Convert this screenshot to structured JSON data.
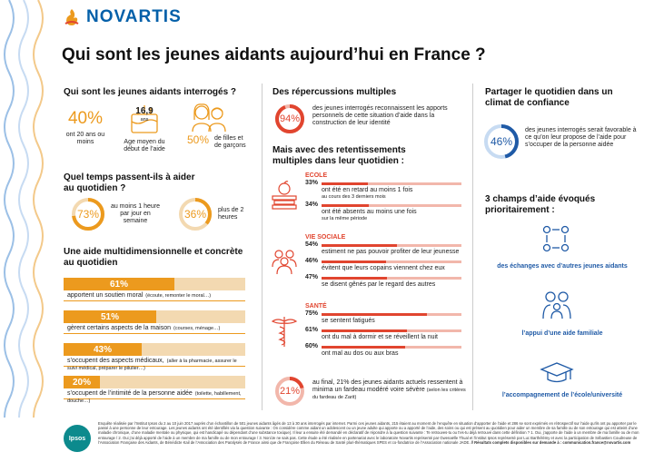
{
  "brand": {
    "name": "NOVARTIS",
    "accent": "#ec9a1e",
    "red": "#e1452f",
    "blue": "#1f5aa6"
  },
  "title": "Qui sont les jeunes aidants aujourd’hui en France ?",
  "who": {
    "heading": "Qui sont les jeunes aidants interrogés ?",
    "age_value": "40%",
    "age_label": "ont 20 ans ou moins",
    "mean_age_value": "16,9",
    "mean_age_unit": "ans",
    "mean_age_label": "Age moyen du début de l’aide",
    "gender_value": "50%",
    "gender_label": "de filles et de garçons"
  },
  "time": {
    "heading": "Quel temps passent-ils à aider au quotidien ?",
    "t1_value": "73%",
    "t1_label": "au moins 1 heure par jour en semaine",
    "t1_pct": 73,
    "t2_value": "36%",
    "t2_label": "plus de 2 heures",
    "t2_pct": 36
  },
  "help": {
    "heading": "Une aide multidimensionnelle et concrète au quotidien",
    "items": [
      {
        "value": "61%",
        "pct": 61,
        "label": "apportent un soutien moral",
        "detail": "(écoute, remonter le moral…)"
      },
      {
        "value": "51%",
        "pct": 51,
        "label": "gèrent certains aspects de la maison",
        "detail": "(courses, ménage…)"
      },
      {
        "value": "43%",
        "pct": 43,
        "label": "s’occupent des aspects médicaux,",
        "detail": "(aller à la pharmacie, assurer le suivi médical, préparer le pilulier…)"
      },
      {
        "value": "20%",
        "pct": 20,
        "label": "s’occupent de l’intimité de la personne aidée",
        "detail": "(toilette, habillement, douche…)"
      }
    ]
  },
  "repercussions": {
    "heading": "Des répercussions multiples",
    "value": "94%",
    "pct": 94,
    "label": "des jeunes interrogés reconnaissent les apports personnels de cette situation d’aide dans la construction de leur identité"
  },
  "impacts": {
    "heading": "Mais avec des retentissements multiples dans leur quotidien :",
    "groups": [
      {
        "name": "ECOLE",
        "items": [
          {
            "value": "33%",
            "pct": 33,
            "label": "ont été en retard au moins 1 fois",
            "detail": "au cours des 3 derniers mois"
          },
          {
            "value": "34%",
            "pct": 34,
            "label": "ont été absents au moins une fois",
            "detail": "sur la même période"
          }
        ]
      },
      {
        "name": "VIE SOCIALE",
        "items": [
          {
            "value": "54%",
            "pct": 54,
            "label": "estiment ne pas pouvoir profiter de leur jeunesse",
            "detail": ""
          },
          {
            "value": "46%",
            "pct": 46,
            "label": "évitent que leurs copains viennent chez eux",
            "detail": ""
          },
          {
            "value": "47%",
            "pct": 47,
            "label": "se disent gênés par le regard des autres",
            "detail": ""
          }
        ]
      },
      {
        "name": "SANTÉ",
        "items": [
          {
            "value": "75%",
            "pct": 75,
            "label": "se sentent fatigués",
            "detail": ""
          },
          {
            "value": "61%",
            "pct": 61,
            "label": "ont du mal à dormir et se réveillent la nuit",
            "detail": ""
          },
          {
            "value": "60%",
            "pct": 60,
            "label": "ont mal au dos ou aux bras",
            "detail": ""
          }
        ]
      }
    ],
    "final_value": "21%",
    "final_pct": 21,
    "final_label": "au final, 21% des jeunes aidants actuels ressentent à minima un fardeau modéré voire sévère",
    "final_detail": "(selon les critères du fardeau de Zarit)"
  },
  "share": {
    "heading": "Partager le quotidien dans un climat de confiance",
    "value": "46%",
    "pct": 46,
    "label": "des jeunes interrogés serait favorable à ce qu’on leur propose de l’aide pour s’occuper de la personne aidée"
  },
  "fields": {
    "heading": "3 champs d’aide évoqués prioritairement :",
    "items": [
      "des échanges avec d’autres jeunes aidants",
      "l’appui d’une aide familiale",
      "l’accompagnement de l’école/université"
    ]
  },
  "footer": {
    "ipsos": "Ipsos",
    "text": "Enquête réalisée par l’Institut Ipsos du 2 au 10 juin 2017 auprès d’un échantillon de 501 jeunes aidants âgés de 13 à 30 ans interrogés par internet. Parmi ces jeunes aidants, 215 étaient au moment de l’enquête en situation d’apporter de l’aide et 286 se sont exprimés en rétrospectif sur l’aide qu’ils ont pu apporter par le passé à une personne de leur entourage. Les jeunes aidants ont été identifiés via la question suivante : On considère comme aidant un adolescent ou un jeune adulte qui apporte ou a apporté de l’aide, des soins ou qui est présent au quotidien pour aider un membre de sa famille ou de son entourage qui est atteint d’une maladie chronique, d’une maladie mentale ou physique, qui est handicapé ou dépendant d’une substance toxique). Il leur a ensuite été demandé en déclaratif de répondre à la question suivante : Te retrouves-tu ou t’es-tu déjà retrouvé dans cette définition ? 1. Oui, j’apporte de l’aide à un membre de ma famille ou de mon entourage / 2. Oui j’ai déjà apporté de l’aide à un membre de ma famille ou de mon entourage / 3. Non/Je ne sais pas. Cette étude a été réalisée en partenariat avec le laboratoire Novartis représenté par Gwenaëlle Thual et l’institut Ipsos représenté par Luc Barthélémy et avec la participation de Sébastien Coudreuse de l’Association Française des Aidants, de Bénédicte Kail de l’Association des Paralysés de France ainsi que de Françoise Ellien du Réseau de Santé pluri-thématiques SPES et co-fondatrice de l’Association nationale JADE.",
    "contact": "// Résultats complets disponibles sur demande à : communication.france@novartis.com"
  }
}
